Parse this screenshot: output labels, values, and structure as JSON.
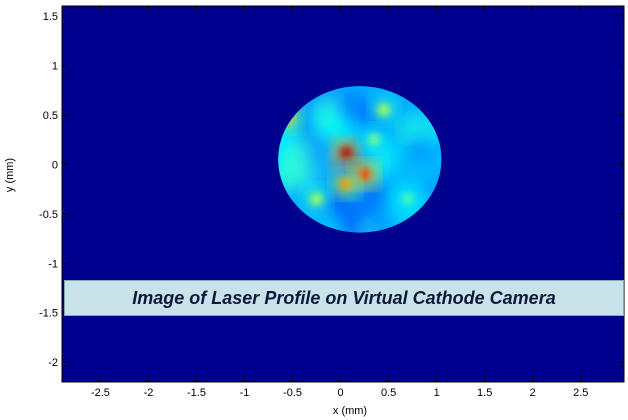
{
  "caption": "Image of Laser Profile on Virtual Cathode Camera",
  "chart_data": {
    "type": "heatmap",
    "title": "",
    "xlabel": "x (mm)",
    "ylabel": "y (mm)",
    "xlim": [
      -2.9,
      2.95
    ],
    "ylim": [
      -2.2,
      1.6
    ],
    "xticks": [
      -2.5,
      -2,
      -1.5,
      -1,
      -0.5,
      0,
      0.5,
      1,
      1.5,
      2,
      2.5
    ],
    "xtick_labels": [
      "-2.5",
      "-2",
      "-1.5",
      "-1",
      "-0.5",
      "0",
      "0.5",
      "1",
      "1.5",
      "2",
      "2.5"
    ],
    "yticks": [
      1.5,
      1,
      0.5,
      0,
      -0.5,
      -1,
      -1.5,
      -2
    ],
    "ytick_labels": [
      "1.5",
      "1",
      "0.5",
      "0",
      "-0.5",
      "-1",
      "-1.5",
      "-2"
    ],
    "grid": false,
    "background_color": "#00008f",
    "colormap": "jet",
    "spot": {
      "center_x": 0.2,
      "center_y": 0.05,
      "radius_x": 0.85,
      "radius_y": 0.74
    },
    "hot_spots": [
      {
        "x": 0.06,
        "y": 0.12,
        "level": 0.95
      },
      {
        "x": 0.25,
        "y": -0.1,
        "level": 0.82
      },
      {
        "x": 0.05,
        "y": -0.2,
        "level": 0.72
      },
      {
        "x": -0.55,
        "y": 0.47,
        "level": 0.7
      },
      {
        "x": 0.45,
        "y": 0.55,
        "level": 0.55
      },
      {
        "x": -0.25,
        "y": -0.35,
        "level": 0.55
      },
      {
        "x": 0.35,
        "y": 0.25,
        "level": 0.5
      },
      {
        "x": 0.7,
        "y": -0.35,
        "level": 0.45
      }
    ]
  }
}
